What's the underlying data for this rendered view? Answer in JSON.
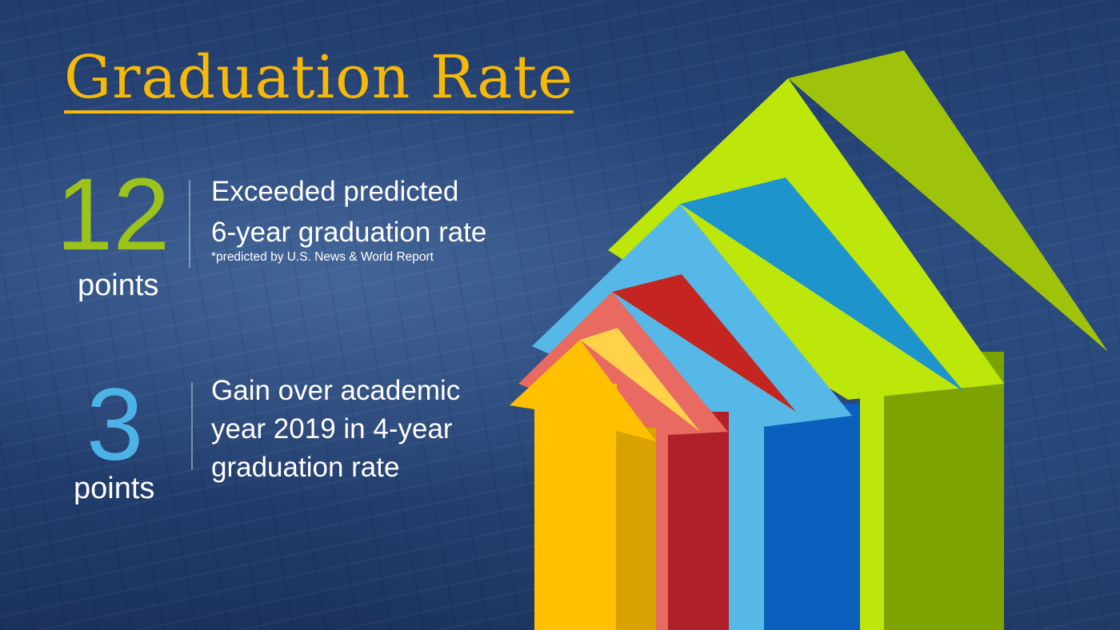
{
  "title": "Graduation Rate",
  "stats": [
    {
      "value": "12",
      "unit": "points",
      "lines": [
        "Exceeded predicted",
        "6-year graduation rate"
      ],
      "footnote": "*predicted by U.S. News & World Report",
      "color": "#9bc31c"
    },
    {
      "value": "3",
      "unit": "points",
      "lines": [
        "Gain over academic",
        "year 2019 in 4-year",
        "graduation rate"
      ],
      "color": "#4db3e6"
    }
  ],
  "graphic": "rising-arrows-illustration",
  "colors": {
    "background": "#213c6c",
    "title": "#f6b90a"
  }
}
